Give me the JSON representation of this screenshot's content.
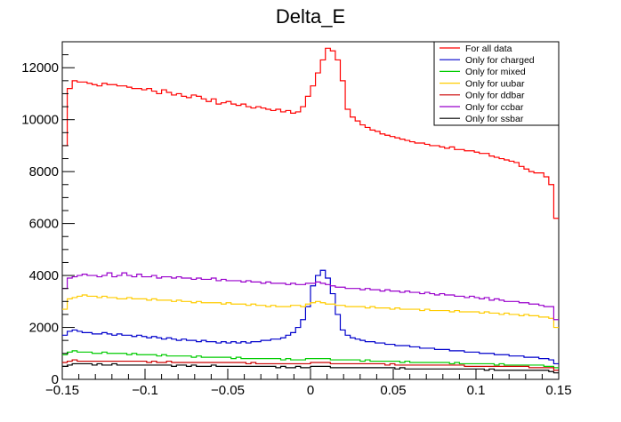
{
  "chart_data": {
    "type": "line",
    "title": "Delta_E",
    "xlabel": "",
    "ylabel": "",
    "xlim": [
      -0.15,
      0.15
    ],
    "ylim": [
      0,
      13000
    ],
    "x_ticks": [
      -0.15,
      -0.1,
      -0.05,
      0,
      0.05,
      0.1,
      0.15
    ],
    "x_tick_labels": [
      "−0.15",
      "−0.1",
      "−0.05",
      "0",
      "0.05",
      "0.1",
      "0.15"
    ],
    "y_ticks": [
      0,
      2000,
      4000,
      6000,
      8000,
      10000,
      12000
    ],
    "y_tick_labels": [
      "0",
      "2000",
      "4000",
      "6000",
      "8000",
      "10000",
      "12000"
    ],
    "grid": false,
    "legend_position": "top-right",
    "bins": 100,
    "series": [
      {
        "name": "For all data",
        "color": "#ff0000",
        "values": [
          9000,
          11200,
          11500,
          11450,
          11450,
          11400,
          11350,
          11300,
          11400,
          11350,
          11350,
          11300,
          11300,
          11250,
          11200,
          11200,
          11150,
          11200,
          11100,
          11000,
          11150,
          11050,
          10950,
          11000,
          10900,
          10850,
          10950,
          10900,
          10800,
          10700,
          10800,
          10600,
          10650,
          10700,
          10600,
          10550,
          10600,
          10500,
          10450,
          10500,
          10450,
          10400,
          10350,
          10400,
          10300,
          10350,
          10250,
          10300,
          10500,
          10900,
          11300,
          11800,
          12300,
          12750,
          12650,
          12300,
          11500,
          10400,
          10100,
          9950,
          9800,
          9700,
          9600,
          9550,
          9450,
          9400,
          9350,
          9300,
          9250,
          9200,
          9150,
          9100,
          9100,
          9050,
          9000,
          9000,
          8950,
          8900,
          8950,
          8850,
          8850,
          8800,
          8800,
          8750,
          8700,
          8700,
          8600,
          8550,
          8500,
          8450,
          8400,
          8350,
          8200,
          8100,
          8000,
          7950,
          7950,
          7800,
          7500,
          6200
        ]
      },
      {
        "name": "Only for charged",
        "color": "#0000cc",
        "values": [
          1700,
          1850,
          1900,
          1850,
          1800,
          1800,
          1750,
          1750,
          1800,
          1750,
          1700,
          1750,
          1700,
          1700,
          1650,
          1700,
          1650,
          1600,
          1650,
          1600,
          1550,
          1600,
          1550,
          1500,
          1550,
          1500,
          1500,
          1450,
          1500,
          1450,
          1450,
          1400,
          1450,
          1400,
          1450,
          1400,
          1450,
          1400,
          1450,
          1450,
          1500,
          1500,
          1550,
          1550,
          1600,
          1700,
          1800,
          2000,
          2300,
          2800,
          3600,
          4000,
          4200,
          3900,
          3300,
          2500,
          1900,
          1700,
          1600,
          1550,
          1500,
          1450,
          1450,
          1400,
          1400,
          1350,
          1350,
          1300,
          1300,
          1300,
          1250,
          1250,
          1200,
          1200,
          1200,
          1150,
          1150,
          1150,
          1100,
          1100,
          1100,
          1050,
          1050,
          1050,
          1000,
          1000,
          1000,
          950,
          950,
          950,
          900,
          900,
          900,
          850,
          850,
          850,
          800,
          800,
          750,
          600
        ]
      },
      {
        "name": "Only for mixed",
        "color": "#00cc00",
        "values": [
          950,
          1050,
          1100,
          1050,
          1050,
          1050,
          1000,
          1000,
          1050,
          1000,
          1000,
          1000,
          1000,
          950,
          1000,
          950,
          950,
          950,
          950,
          900,
          950,
          900,
          900,
          900,
          900,
          900,
          850,
          900,
          850,
          850,
          850,
          850,
          850,
          850,
          800,
          850,
          800,
          800,
          800,
          800,
          800,
          800,
          800,
          800,
          750,
          800,
          750,
          750,
          750,
          800,
          800,
          800,
          800,
          800,
          750,
          750,
          750,
          750,
          750,
          750,
          700,
          750,
          700,
          700,
          700,
          700,
          700,
          700,
          650,
          700,
          650,
          650,
          650,
          650,
          650,
          650,
          650,
          650,
          600,
          650,
          600,
          600,
          600,
          600,
          600,
          600,
          600,
          550,
          600,
          550,
          550,
          550,
          550,
          550,
          550,
          550,
          550,
          500,
          500,
          450
        ]
      },
      {
        "name": "Only for uubar",
        "color": "#ffcc00",
        "values": [
          2700,
          3100,
          3150,
          3200,
          3250,
          3200,
          3200,
          3150,
          3200,
          3150,
          3150,
          3100,
          3100,
          3150,
          3100,
          3100,
          3100,
          3050,
          3100,
          3050,
          3050,
          3050,
          3000,
          3050,
          3000,
          3000,
          2950,
          3000,
          2950,
          2950,
          2950,
          2950,
          2900,
          2950,
          2900,
          2900,
          2900,
          2850,
          2900,
          2850,
          2850,
          2800,
          2850,
          2800,
          2800,
          2800,
          2850,
          2850,
          2800,
          2900,
          2950,
          3000,
          2950,
          2900,
          2900,
          2850,
          2850,
          2800,
          2800,
          2800,
          2800,
          2750,
          2800,
          2750,
          2750,
          2750,
          2700,
          2750,
          2700,
          2700,
          2700,
          2700,
          2650,
          2700,
          2650,
          2650,
          2650,
          2650,
          2600,
          2650,
          2600,
          2600,
          2600,
          2600,
          2550,
          2600,
          2550,
          2550,
          2500,
          2550,
          2500,
          2500,
          2450,
          2500,
          2450,
          2450,
          2400,
          2400,
          2350,
          2000
        ]
      },
      {
        "name": "Only for ddbar",
        "color": "#cc0000",
        "values": [
          650,
          700,
          750,
          700,
          700,
          700,
          700,
          700,
          700,
          700,
          700,
          700,
          700,
          700,
          700,
          700,
          700,
          650,
          700,
          650,
          650,
          700,
          650,
          650,
          650,
          650,
          650,
          650,
          650,
          650,
          650,
          650,
          650,
          650,
          650,
          650,
          650,
          600,
          650,
          600,
          600,
          600,
          600,
          600,
          600,
          600,
          600,
          600,
          600,
          600,
          650,
          650,
          650,
          650,
          600,
          600,
          600,
          600,
          600,
          600,
          600,
          600,
          600,
          600,
          600,
          550,
          600,
          550,
          550,
          550,
          550,
          550,
          550,
          550,
          550,
          550,
          550,
          550,
          550,
          550,
          550,
          500,
          500,
          500,
          500,
          500,
          500,
          500,
          500,
          500,
          500,
          500,
          500,
          500,
          450,
          450,
          450,
          450,
          450,
          350
        ]
      },
      {
        "name": "Only for ccbar",
        "color": "#9900cc",
        "values": [
          3500,
          3900,
          3950,
          4000,
          4050,
          4000,
          4000,
          3950,
          4000,
          4100,
          3950,
          4000,
          4100,
          4000,
          3950,
          4050,
          3950,
          3950,
          4000,
          3900,
          3950,
          3950,
          3900,
          3950,
          3900,
          3900,
          3850,
          3900,
          3850,
          3850,
          3900,
          3800,
          3850,
          3800,
          3800,
          3800,
          3750,
          3800,
          3750,
          3750,
          3700,
          3750,
          3700,
          3700,
          3700,
          3650,
          3700,
          3650,
          3650,
          3700,
          3700,
          3750,
          3700,
          3650,
          3600,
          3550,
          3550,
          3500,
          3500,
          3500,
          3450,
          3500,
          3450,
          3450,
          3400,
          3450,
          3400,
          3400,
          3350,
          3400,
          3350,
          3350,
          3300,
          3350,
          3300,
          3250,
          3300,
          3250,
          3250,
          3200,
          3200,
          3150,
          3200,
          3150,
          3100,
          3150,
          3050,
          3100,
          3050,
          3000,
          3000,
          3000,
          2950,
          2950,
          2900,
          2900,
          2850,
          2800,
          2800,
          2300
        ]
      },
      {
        "name": "Only for ssbar",
        "color": "#000000",
        "values": [
          500,
          550,
          600,
          600,
          600,
          600,
          550,
          600,
          550,
          550,
          600,
          550,
          550,
          550,
          550,
          550,
          550,
          550,
          550,
          550,
          550,
          550,
          500,
          550,
          550,
          500,
          550,
          500,
          500,
          500,
          550,
          500,
          500,
          500,
          500,
          500,
          500,
          500,
          500,
          500,
          500,
          500,
          500,
          450,
          500,
          450,
          450,
          500,
          450,
          450,
          500,
          500,
          500,
          500,
          450,
          450,
          450,
          450,
          450,
          450,
          450,
          450,
          450,
          450,
          450,
          450,
          450,
          400,
          450,
          400,
          400,
          400,
          400,
          400,
          400,
          400,
          400,
          400,
          400,
          400,
          400,
          400,
          400,
          400,
          400,
          350,
          400,
          350,
          350,
          350,
          350,
          350,
          350,
          350,
          350,
          350,
          350,
          350,
          300,
          250
        ]
      }
    ]
  }
}
